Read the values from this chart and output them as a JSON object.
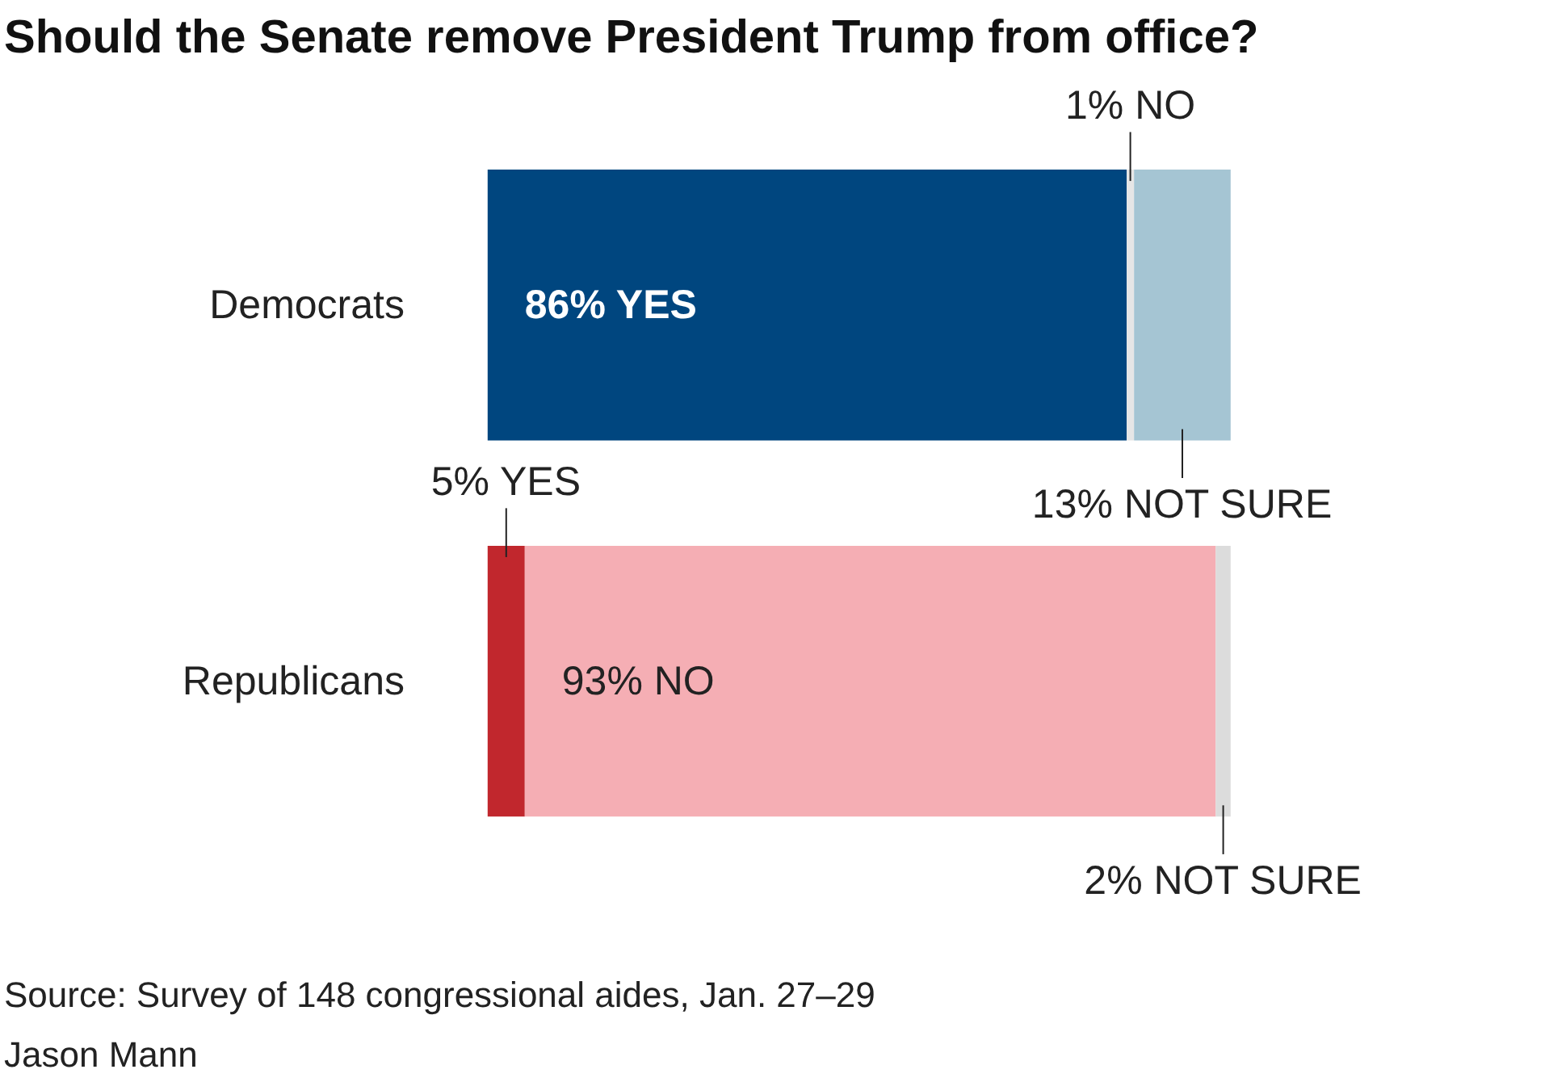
{
  "chart_data": {
    "type": "bar",
    "orientation": "horizontal",
    "stacked": true,
    "title": "Should the Senate remove President Trump from office?",
    "categories": [
      "Democrats",
      "Republicans"
    ],
    "series": [
      {
        "values": [
          86,
          5
        ],
        "colors": [
          "#00467f",
          "#c1272d"
        ],
        "value_labels": [
          "86% YES",
          "5% YES"
        ]
      },
      {
        "values": [
          1,
          93
        ],
        "colors": [
          "#e6e6e6",
          "#f5aeb4"
        ],
        "value_labels": [
          "1% NO",
          "93% NO"
        ]
      },
      {
        "values": [
          13,
          2
        ],
        "colors": [
          "#a5c5d3",
          "#dcdcdc"
        ],
        "value_labels": [
          "13% NOT SURE",
          "2% NOT SURE"
        ]
      }
    ],
    "annotations": [
      "Source: Survey of 148 congressional aides, Jan. 27–29",
      "Jason Mann"
    ]
  }
}
